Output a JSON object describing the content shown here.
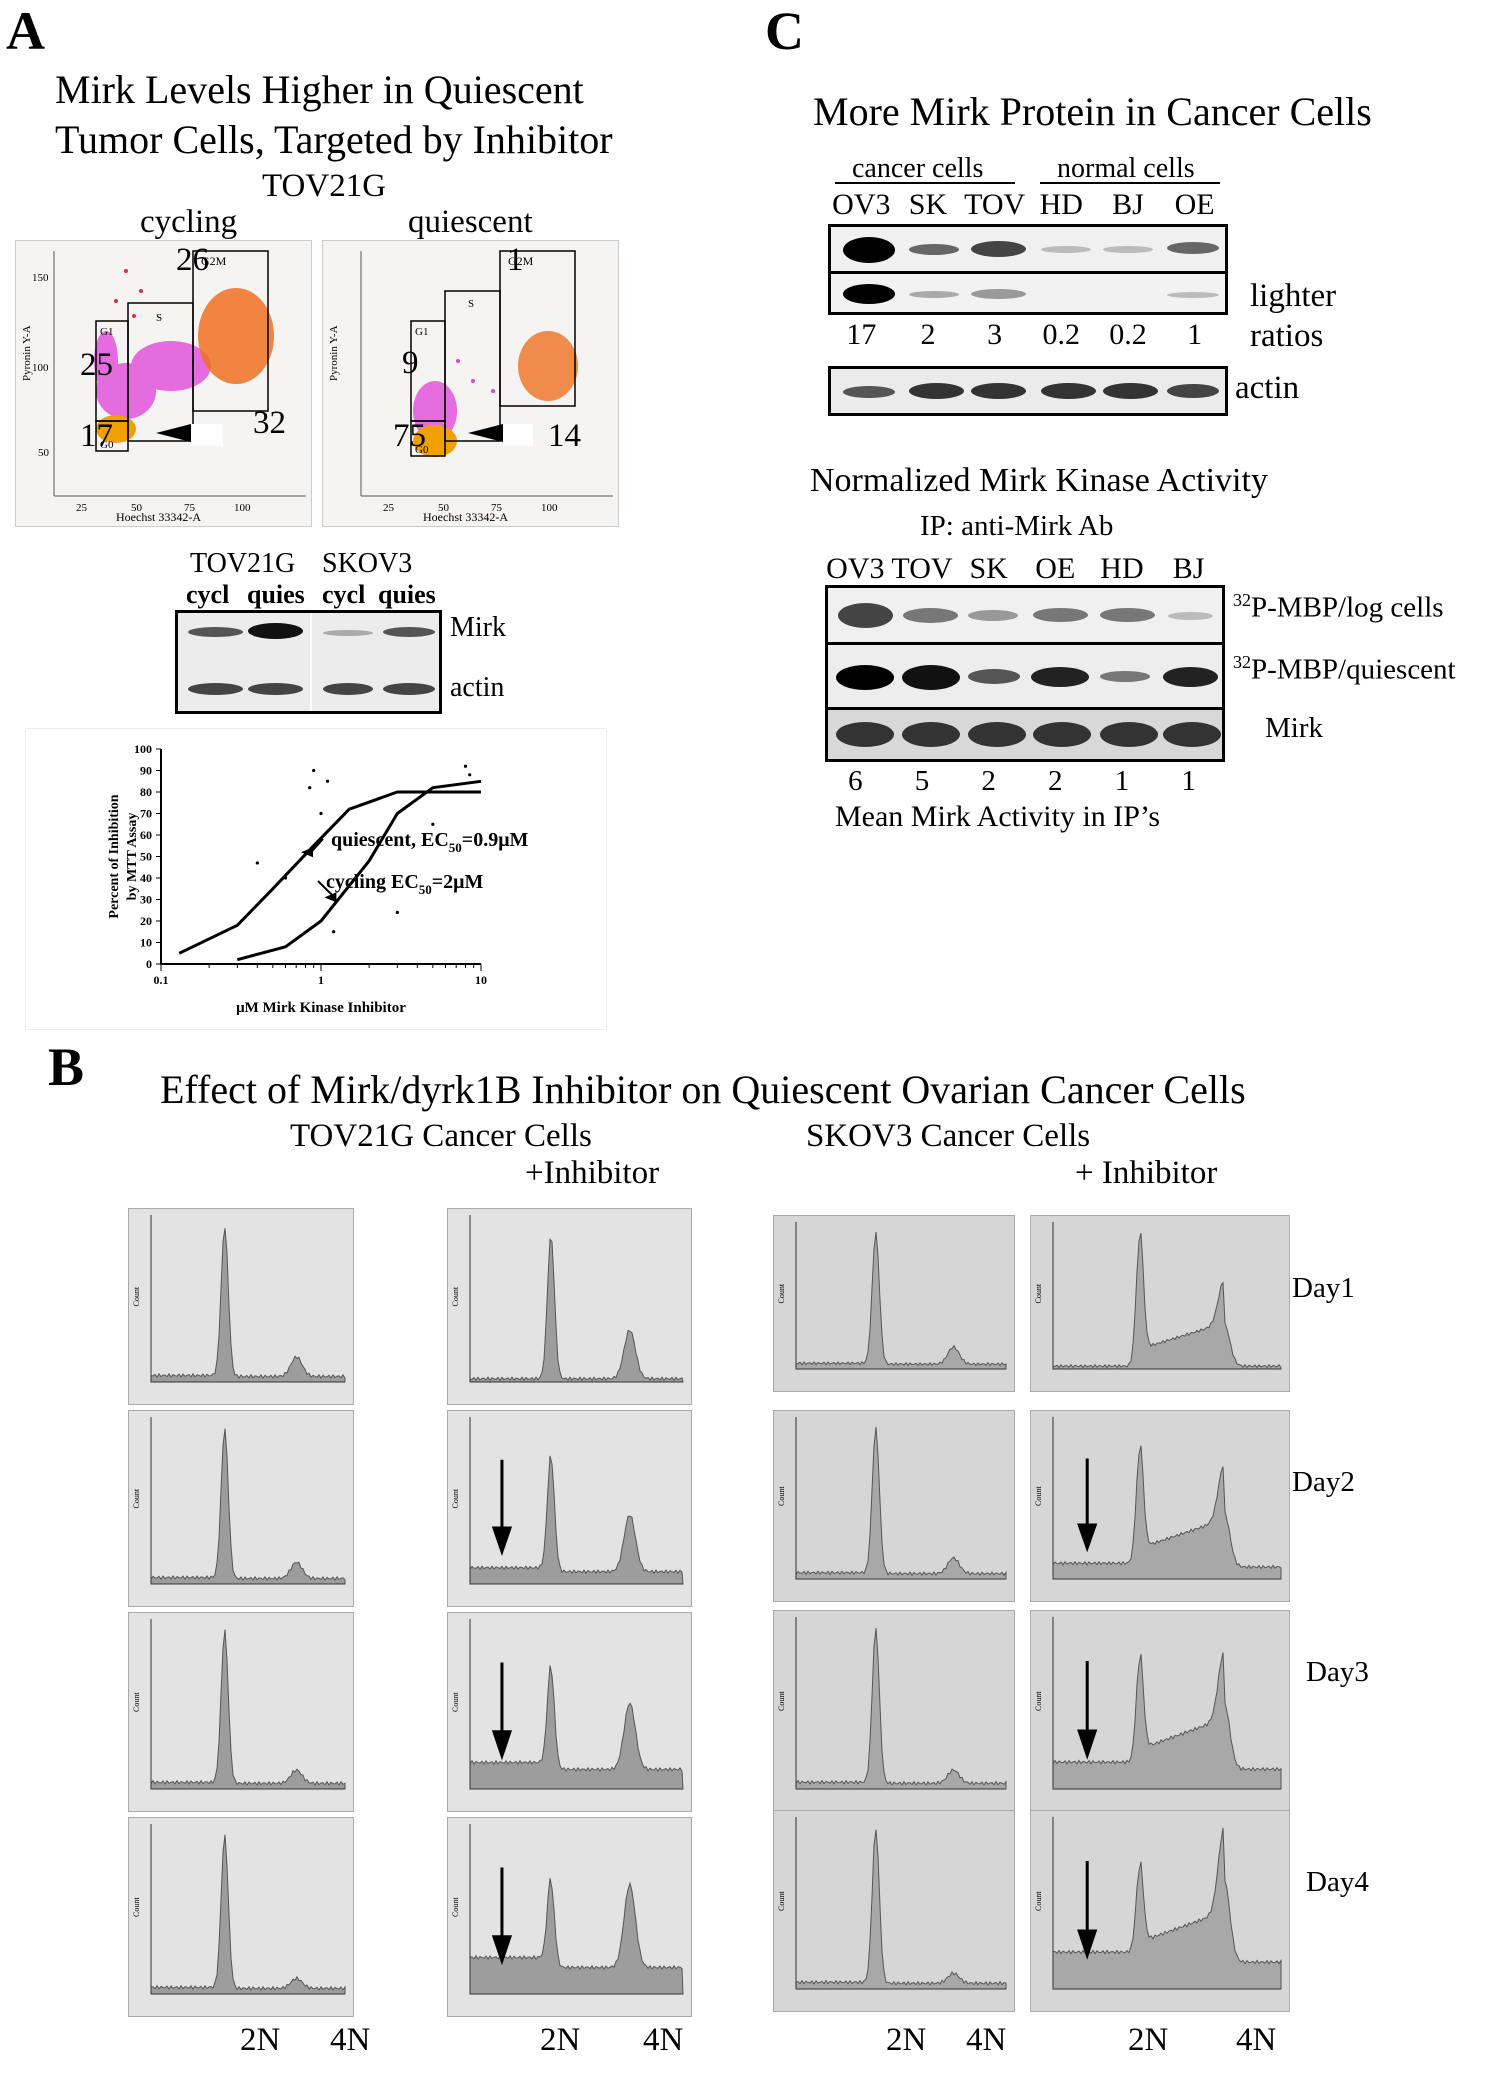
{
  "panelA": {
    "letter": "A",
    "title1": "Mirk Levels Higher in Quiescent",
    "title2": "Tumor Cells, Targeted by Inhibitor",
    "cell_line": "TOV21G",
    "flow": {
      "cycling": {
        "label": "cycling",
        "g2m": "26",
        "s": "",
        "g1": "25",
        "g0": "17",
        "g2m_region": "32",
        "gate_g1": "G1",
        "gate_s": "S",
        "gate_g2m": "G2M",
        "gate_g0": "G0"
      },
      "quiescent": {
        "label": "quiescent",
        "s": "1",
        "g1": "9",
        "g0": "75",
        "g2m_region": "14",
        "gate_g1": "G1",
        "gate_s": "S",
        "gate_g2m": "G2M",
        "gate_g0": "G0"
      },
      "ylabel": "Pyronin Y-A",
      "xlabel": "Hoechst 33342-A",
      "xticks": [
        "25",
        "50",
        "75",
        "100"
      ],
      "yticks": [
        "50",
        "100",
        "150"
      ]
    },
    "blot": {
      "header1": "TOV21G",
      "header2": "SKOV3",
      "lanes": [
        "cycl",
        "quies",
        "cycl",
        "quies"
      ],
      "row1": "Mirk",
      "row2": "actin"
    }
  },
  "panelB": {
    "letter": "B",
    "title": "Effect of Mirk/dyrk1B Inhibitor on Quiescent Ovarian Cancer Cells",
    "tov_title": "TOV21G Cancer Cells",
    "tov_plus": "+Inhibitor",
    "sk_title": "SKOV3 Cancer Cells",
    "sk_plus": "+ Inhibitor",
    "days": [
      "Day1",
      "Day2",
      "Day3",
      "Day4"
    ],
    "x2n": "2N",
    "x4n": "4N",
    "count_label": "Count"
  },
  "panelC": {
    "letter": "C",
    "title": "More Mirk Protein in Cancer Cells",
    "group1": "cancer cells",
    "group2": "normal cells",
    "lanes1": [
      "OV3",
      "SK",
      "TOV",
      "HD",
      "BJ",
      "OE"
    ],
    "lighter": "lighter",
    "ratios_label": "ratios",
    "ratios": [
      "17",
      "2",
      "3",
      "0.2",
      "0.2",
      "1"
    ],
    "actin": "actin",
    "title2": "Normalized Mirk Kinase Activity",
    "ip": "IP: anti-Mirk Ab",
    "lanes2": [
      "OV3",
      "TOV",
      "SK",
      "OE",
      "HD",
      "BJ"
    ],
    "row_log": "P-MBP/log cells",
    "row_q": "P-MBP/quiescent",
    "iso": "32",
    "row_mirk": "Mirk",
    "activity": [
      "6",
      "5",
      "2",
      "2",
      "1",
      "1"
    ],
    "caption": "Mean Mirk Activity in IP’s"
  },
  "chart_data": {
    "type": "scatter",
    "xlabel": "μM Mirk Kinase Inhibitor",
    "ylabel": "Percent of Inhibition by MTT Assay",
    "xscale": "log",
    "xlim": [
      0.1,
      10
    ],
    "ylim": [
      0,
      100
    ],
    "xticks": [
      "0.1",
      "1",
      "10"
    ],
    "yticks": [
      "0",
      "10",
      "20",
      "30",
      "40",
      "50",
      "60",
      "70",
      "80",
      "90",
      "100"
    ],
    "series": [
      {
        "name": "quiescent",
        "ec50": "0.9μM",
        "x": [
          0.13,
          0.3,
          0.5,
          0.9,
          1.5,
          3,
          10
        ],
        "y": [
          5,
          18,
          35,
          55,
          72,
          80,
          80
        ]
      },
      {
        "name": "cycling",
        "ec50": "2μM",
        "x": [
          0.3,
          0.6,
          1,
          2,
          3,
          5,
          10
        ],
        "y": [
          2,
          8,
          20,
          48,
          70,
          82,
          85
        ]
      }
    ],
    "points": {
      "x": [
        0.4,
        0.6,
        0.85,
        0.9,
        1.0,
        1.1,
        1.2,
        3,
        5,
        8,
        8.5
      ],
      "y": [
        47,
        40,
        82,
        90,
        70,
        85,
        15,
        24,
        65,
        92,
        88
      ]
    },
    "annotations": [
      {
        "prefix": "quiescent, EC",
        "sub": "50",
        "suffix": "=0.9μM"
      },
      {
        "prefix": "cycling EC",
        "sub": "50",
        "suffix": "=2μM"
      }
    ]
  }
}
